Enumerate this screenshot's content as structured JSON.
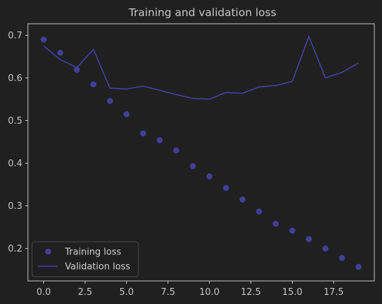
{
  "chart_data": {
    "type": "line",
    "title": "Training and validation loss",
    "xlabel": "",
    "ylabel": "",
    "xlim": [
      -0.95,
      19.95
    ],
    "ylim": [
      0.124,
      0.727
    ],
    "x_ticks": [
      0,
      2.5,
      5,
      7.5,
      10,
      12.5,
      15,
      17.5
    ],
    "x_tick_labels": [
      "0.0",
      "2.5",
      "5.0",
      "7.5",
      "10.0",
      "12.5",
      "15.0",
      "17.5"
    ],
    "y_ticks": [
      0.2,
      0.3,
      0.4,
      0.5,
      0.6,
      0.7
    ],
    "y_tick_labels": [
      "0.2",
      "0.3",
      "0.4",
      "0.5",
      "0.6",
      "0.7"
    ],
    "grid": false,
    "legend_position": "lower-left",
    "x": [
      0,
      1,
      2,
      3,
      4,
      5,
      6,
      7,
      8,
      9,
      10,
      11,
      12,
      13,
      14,
      15,
      16,
      17,
      18,
      19
    ],
    "series": [
      {
        "name": "Training loss",
        "style": "markers",
        "color": "#40409a",
        "values": [
          0.69,
          0.659,
          0.619,
          0.585,
          0.546,
          0.515,
          0.47,
          0.454,
          0.43,
          0.393,
          0.369,
          0.342,
          0.315,
          0.287,
          0.258,
          0.242,
          0.222,
          0.2,
          0.178,
          0.157
        ]
      },
      {
        "name": "Validation loss",
        "style": "line",
        "color": "#4545a8",
        "values": [
          0.675,
          0.643,
          0.624,
          0.667,
          0.576,
          0.574,
          0.581,
          0.571,
          0.561,
          0.552,
          0.55,
          0.566,
          0.564,
          0.579,
          0.582,
          0.592,
          0.697,
          0.6,
          0.613,
          0.635
        ]
      }
    ]
  }
}
